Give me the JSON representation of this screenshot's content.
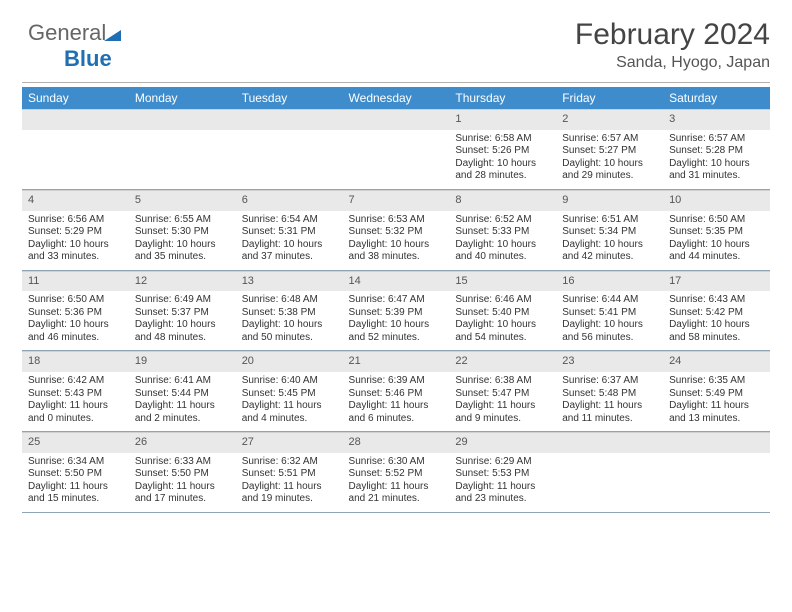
{
  "brand": {
    "part1": "General",
    "part2": "Blue"
  },
  "header": {
    "month_title": "February 2024",
    "location": "Sanda, Hyogo, Japan"
  },
  "colors": {
    "header_bg": "#3e8ccc",
    "header_fg": "#ffffff",
    "daynum_bg": "#e9e9e9",
    "rule": "#b0b0b0",
    "row_border": "#8fa4b5"
  },
  "weekdays": [
    "Sunday",
    "Monday",
    "Tuesday",
    "Wednesday",
    "Thursday",
    "Friday",
    "Saturday"
  ],
  "leading_blanks": 4,
  "days": [
    {
      "n": 1,
      "sunrise": "6:58 AM",
      "sunset": "5:26 PM",
      "daylight": "10 hours and 28 minutes."
    },
    {
      "n": 2,
      "sunrise": "6:57 AM",
      "sunset": "5:27 PM",
      "daylight": "10 hours and 29 minutes."
    },
    {
      "n": 3,
      "sunrise": "6:57 AM",
      "sunset": "5:28 PM",
      "daylight": "10 hours and 31 minutes."
    },
    {
      "n": 4,
      "sunrise": "6:56 AM",
      "sunset": "5:29 PM",
      "daylight": "10 hours and 33 minutes."
    },
    {
      "n": 5,
      "sunrise": "6:55 AM",
      "sunset": "5:30 PM",
      "daylight": "10 hours and 35 minutes."
    },
    {
      "n": 6,
      "sunrise": "6:54 AM",
      "sunset": "5:31 PM",
      "daylight": "10 hours and 37 minutes."
    },
    {
      "n": 7,
      "sunrise": "6:53 AM",
      "sunset": "5:32 PM",
      "daylight": "10 hours and 38 minutes."
    },
    {
      "n": 8,
      "sunrise": "6:52 AM",
      "sunset": "5:33 PM",
      "daylight": "10 hours and 40 minutes."
    },
    {
      "n": 9,
      "sunrise": "6:51 AM",
      "sunset": "5:34 PM",
      "daylight": "10 hours and 42 minutes."
    },
    {
      "n": 10,
      "sunrise": "6:50 AM",
      "sunset": "5:35 PM",
      "daylight": "10 hours and 44 minutes."
    },
    {
      "n": 11,
      "sunrise": "6:50 AM",
      "sunset": "5:36 PM",
      "daylight": "10 hours and 46 minutes."
    },
    {
      "n": 12,
      "sunrise": "6:49 AM",
      "sunset": "5:37 PM",
      "daylight": "10 hours and 48 minutes."
    },
    {
      "n": 13,
      "sunrise": "6:48 AM",
      "sunset": "5:38 PM",
      "daylight": "10 hours and 50 minutes."
    },
    {
      "n": 14,
      "sunrise": "6:47 AM",
      "sunset": "5:39 PM",
      "daylight": "10 hours and 52 minutes."
    },
    {
      "n": 15,
      "sunrise": "6:46 AM",
      "sunset": "5:40 PM",
      "daylight": "10 hours and 54 minutes."
    },
    {
      "n": 16,
      "sunrise": "6:44 AM",
      "sunset": "5:41 PM",
      "daylight": "10 hours and 56 minutes."
    },
    {
      "n": 17,
      "sunrise": "6:43 AM",
      "sunset": "5:42 PM",
      "daylight": "10 hours and 58 minutes."
    },
    {
      "n": 18,
      "sunrise": "6:42 AM",
      "sunset": "5:43 PM",
      "daylight": "11 hours and 0 minutes."
    },
    {
      "n": 19,
      "sunrise": "6:41 AM",
      "sunset": "5:44 PM",
      "daylight": "11 hours and 2 minutes."
    },
    {
      "n": 20,
      "sunrise": "6:40 AM",
      "sunset": "5:45 PM",
      "daylight": "11 hours and 4 minutes."
    },
    {
      "n": 21,
      "sunrise": "6:39 AM",
      "sunset": "5:46 PM",
      "daylight": "11 hours and 6 minutes."
    },
    {
      "n": 22,
      "sunrise": "6:38 AM",
      "sunset": "5:47 PM",
      "daylight": "11 hours and 9 minutes."
    },
    {
      "n": 23,
      "sunrise": "6:37 AM",
      "sunset": "5:48 PM",
      "daylight": "11 hours and 11 minutes."
    },
    {
      "n": 24,
      "sunrise": "6:35 AM",
      "sunset": "5:49 PM",
      "daylight": "11 hours and 13 minutes."
    },
    {
      "n": 25,
      "sunrise": "6:34 AM",
      "sunset": "5:50 PM",
      "daylight": "11 hours and 15 minutes."
    },
    {
      "n": 26,
      "sunrise": "6:33 AM",
      "sunset": "5:50 PM",
      "daylight": "11 hours and 17 minutes."
    },
    {
      "n": 27,
      "sunrise": "6:32 AM",
      "sunset": "5:51 PM",
      "daylight": "11 hours and 19 minutes."
    },
    {
      "n": 28,
      "sunrise": "6:30 AM",
      "sunset": "5:52 PM",
      "daylight": "11 hours and 21 minutes."
    },
    {
      "n": 29,
      "sunrise": "6:29 AM",
      "sunset": "5:53 PM",
      "daylight": "11 hours and 23 minutes."
    }
  ],
  "labels": {
    "sunrise": "Sunrise:",
    "sunset": "Sunset:",
    "daylight": "Daylight:"
  }
}
